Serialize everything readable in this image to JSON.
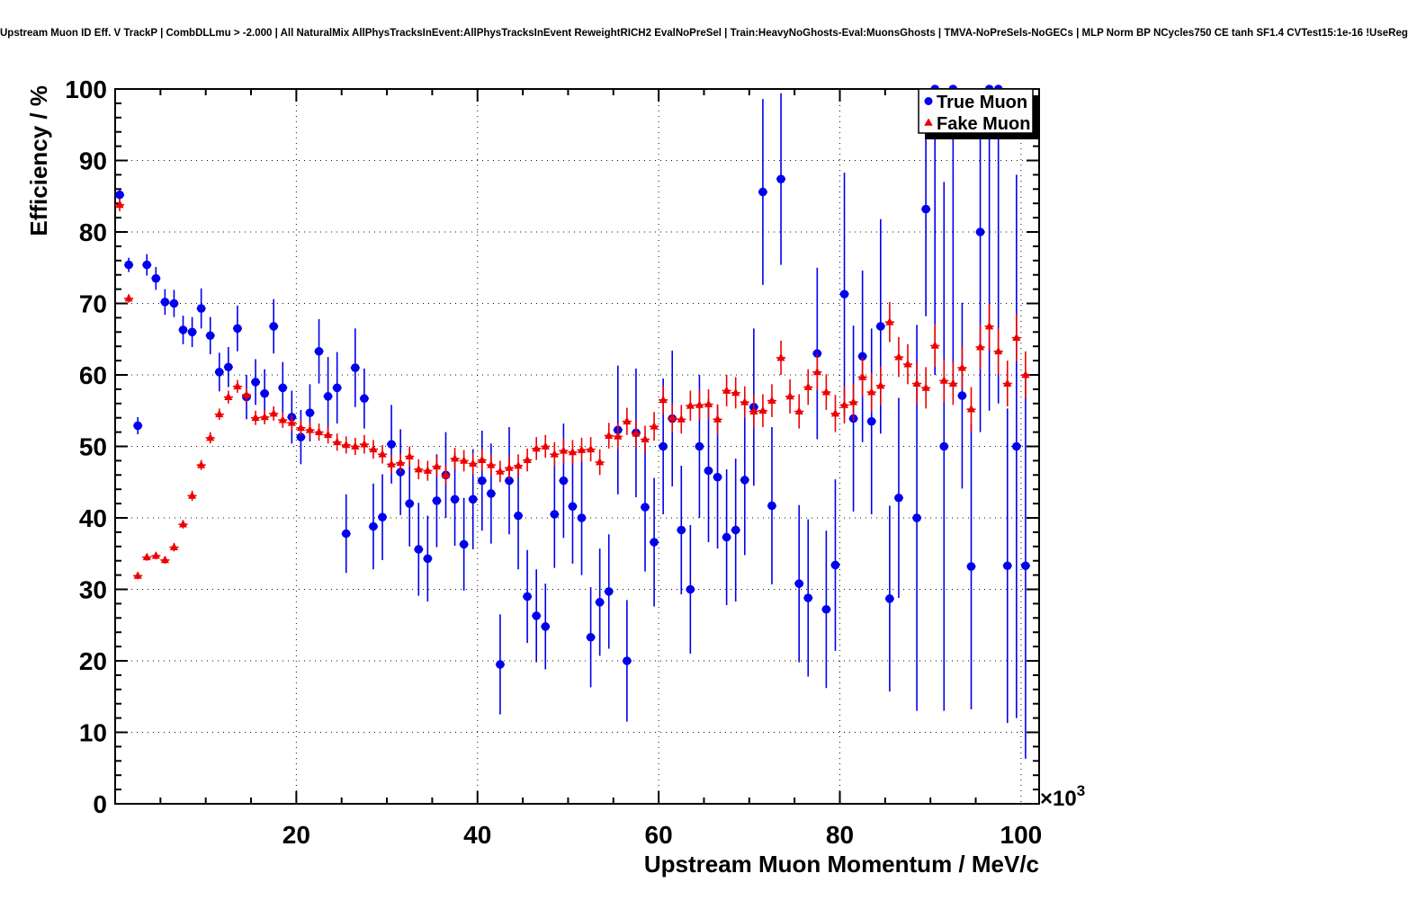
{
  "header": {
    "title": "Upstream Muon ID Eff. V TrackP | CombDLLmu > -2.000 | All NaturalMix AllPhysTracksInEvent:AllPhysTracksInEvent ReweightRICH2 EvalNoPreSel | Train:HeavyNoGhosts-Eval:MuonsGhosts | TMVA-NoPreSels-NoGECs | MLP Norm BP NCycles750 CE tanh SF1.4 CVTest15:1e-16 !UseReg"
  },
  "chart_data": {
    "type": "scatter",
    "title": "Upstream Muon ID Eff. V TrackP",
    "xlabel": "Upstream Muon Momentum / MeV/c",
    "ylabel": "Efficiency / %",
    "x_multiplier": {
      "base": "×10",
      "exp": "3"
    },
    "xlim": [
      0,
      102
    ],
    "ylim": [
      0,
      100
    ],
    "x_unit_scale": "values in units of 10^3 MeV/c",
    "x_major_ticks": [
      20,
      40,
      60,
      80,
      100
    ],
    "x_major_tick_labels": [
      "20",
      "40",
      "60",
      "80",
      "100"
    ],
    "x_minor_step": 5,
    "y_major_ticks": [
      0,
      10,
      20,
      30,
      40,
      50,
      60,
      70,
      80,
      90,
      100
    ],
    "y_major_tick_labels": [
      "0",
      "10",
      "20",
      "30",
      "40",
      "50",
      "60",
      "70",
      "80",
      "90",
      "100"
    ],
    "y_minor_step": 2,
    "grid": "dotted black gridlines at major ticks, both axes",
    "frame_color": "#000000",
    "bin_half_width": 0.5,
    "legend": {
      "position": "top-right",
      "entries": [
        {
          "label": "True Muon",
          "marker": "circle",
          "color": "#0000ee"
        },
        {
          "label": "Fake Muon",
          "marker": "triangle",
          "color": "#ee0000"
        }
      ]
    },
    "series": [
      {
        "name": "True Muon",
        "marker": "circle",
        "color": "#0000ee",
        "x": [
          0.5,
          1.5,
          2.5,
          3.5,
          4.5,
          5.5,
          6.5,
          7.5,
          8.5,
          9.5,
          10.5,
          11.5,
          12.5,
          13.5,
          14.5,
          15.5,
          16.5,
          17.5,
          18.5,
          19.5,
          20.5,
          21.5,
          22.5,
          23.5,
          24.5,
          25.5,
          26.5,
          27.5,
          28.5,
          29.5,
          30.5,
          31.5,
          32.5,
          33.5,
          34.5,
          35.5,
          36.5,
          37.5,
          38.5,
          39.5,
          40.5,
          41.5,
          42.5,
          43.5,
          44.5,
          45.5,
          46.5,
          47.5,
          48.5,
          49.5,
          50.5,
          51.5,
          52.5,
          53.5,
          54.5,
          55.5,
          56.5,
          57.5,
          58.5,
          59.5,
          60.5,
          61.5,
          62.5,
          63.5,
          64.5,
          65.5,
          66.5,
          67.5,
          68.5,
          69.5,
          70.5,
          71.5,
          72.5,
          73.5,
          75.5,
          76.5,
          77.5,
          78.5,
          79.5,
          80.5,
          81.5,
          82.5,
          83.5,
          84.5,
          85.5,
          86.5,
          88.5,
          89.5,
          90.5,
          91.5,
          92.5,
          93.5,
          94.5,
          95.5,
          96.5,
          97.5,
          98.5,
          99.5,
          100.5
        ],
        "y": [
          85.2,
          75.4,
          52.9,
          75.4,
          73.5,
          70.2,
          70.0,
          66.3,
          66.0,
          69.3,
          65.5,
          60.4,
          61.1,
          66.5,
          56.9,
          59.0,
          57.4,
          66.8,
          58.2,
          54.1,
          51.3,
          54.7,
          63.3,
          57.0,
          58.2,
          37.8,
          61.0,
          56.7,
          38.8,
          40.1,
          50.3,
          46.4,
          42.0,
          35.6,
          34.3,
          42.4,
          46.0,
          42.6,
          36.3,
          42.6,
          45.2,
          43.4,
          19.5,
          45.2,
          40.3,
          29.0,
          26.3,
          24.8,
          40.5,
          45.2,
          41.6,
          40.0,
          23.3,
          28.2,
          29.7,
          52.3,
          20.0,
          51.9,
          41.5,
          36.6,
          50.0,
          53.9,
          38.3,
          30.0,
          50.0,
          46.6,
          45.7,
          37.3,
          38.3,
          45.3,
          55.5,
          85.6,
          41.7,
          87.4,
          30.8,
          28.8,
          63.0,
          27.2,
          33.4,
          71.3,
          53.9,
          62.6,
          53.5,
          66.8,
          28.7,
          42.8,
          40.0,
          83.2,
          100.0,
          50.0,
          100.0,
          57.1,
          33.2,
          80.0,
          100.0,
          100.0,
          33.3,
          50.0,
          33.3
        ],
        "ey": [
          0.8,
          1.0,
          1.2,
          1.5,
          1.6,
          1.8,
          1.9,
          2.0,
          2.1,
          2.8,
          2.6,
          2.7,
          2.8,
          3.2,
          3.1,
          3.2,
          3.4,
          3.8,
          3.6,
          3.7,
          3.8,
          4.0,
          4.5,
          5.5,
          5.0,
          5.5,
          5.5,
          4.2,
          6.0,
          6.0,
          5.5,
          6.0,
          6.0,
          6.5,
          6.0,
          6.5,
          6.0,
          6.5,
          6.5,
          7.0,
          7.0,
          7.0,
          7.0,
          7.5,
          7.5,
          6.5,
          6.5,
          6.0,
          7.5,
          8.0,
          8.0,
          8.0,
          7.0,
          7.5,
          8.0,
          9.0,
          8.5,
          9.0,
          9.0,
          9.0,
          9.5,
          9.5,
          9.0,
          9.0,
          10,
          10,
          10,
          9.5,
          10,
          10.5,
          11,
          13,
          11,
          12,
          11,
          11,
          12,
          11,
          12,
          17,
          13,
          12,
          13,
          15,
          13,
          14,
          27,
          15,
          40,
          37,
          42,
          13,
          20,
          28,
          45,
          44,
          22,
          38,
          27
        ]
      },
      {
        "name": "Fake Muon",
        "marker": "triangle",
        "color": "#ee0000",
        "x": [
          0.5,
          1.5,
          2.5,
          3.5,
          4.5,
          5.5,
          6.5,
          7.5,
          8.5,
          9.5,
          10.5,
          11.5,
          12.5,
          13.5,
          14.5,
          15.5,
          16.5,
          17.5,
          18.5,
          19.5,
          20.5,
          21.5,
          22.5,
          23.5,
          24.5,
          25.5,
          26.5,
          27.5,
          28.5,
          29.5,
          30.5,
          31.5,
          32.5,
          33.5,
          34.5,
          35.5,
          36.5,
          37.5,
          38.5,
          39.5,
          40.5,
          41.5,
          42.5,
          43.5,
          44.5,
          45.5,
          46.5,
          47.5,
          48.5,
          49.5,
          50.5,
          51.5,
          52.5,
          53.5,
          54.5,
          55.5,
          56.5,
          57.5,
          58.5,
          59.5,
          60.5,
          61.5,
          62.5,
          63.5,
          64.5,
          65.5,
          66.5,
          67.5,
          68.5,
          69.5,
          70.5,
          71.5,
          72.5,
          73.5,
          74.5,
          75.5,
          76.5,
          77.5,
          78.5,
          79.5,
          80.5,
          81.5,
          82.5,
          83.5,
          84.5,
          85.5,
          86.5,
          87.5,
          88.5,
          89.5,
          90.5,
          91.5,
          92.5,
          93.5,
          94.5,
          95.5,
          96.5,
          97.5,
          98.5,
          99.5,
          100.5
        ],
        "y": [
          83.8,
          70.7,
          31.9,
          34.5,
          34.7,
          34.1,
          35.9,
          39.1,
          43.1,
          47.4,
          51.2,
          54.5,
          56.9,
          58.4,
          57.2,
          54.0,
          54.1,
          54.6,
          53.7,
          53.3,
          52.6,
          52.3,
          52.0,
          51.6,
          50.6,
          50.2,
          50.0,
          50.3,
          49.6,
          48.9,
          47.5,
          47.7,
          48.6,
          46.8,
          46.6,
          47.2,
          46.0,
          48.3,
          48.0,
          47.6,
          48.1,
          47.4,
          46.5,
          47.0,
          47.3,
          48.1,
          49.7,
          50.0,
          48.9,
          49.4,
          49.2,
          49.5,
          49.6,
          47.8,
          51.5,
          51.4,
          53.5,
          51.8,
          51.0,
          52.8,
          56.5,
          54.0,
          53.8,
          55.7,
          55.8,
          55.9,
          53.8,
          57.8,
          57.5,
          56.2,
          54.9,
          55.0,
          56.4,
          62.4,
          57.0,
          54.9,
          58.3,
          60.4,
          57.6,
          54.6,
          55.8,
          56.2,
          59.7,
          57.6,
          58.5,
          67.4,
          62.5,
          61.5,
          58.8,
          58.2,
          64.1,
          59.2,
          58.8,
          61.0,
          55.2,
          63.9,
          66.8,
          63.3,
          58.8,
          65.2,
          60.0
        ],
        "ey": [
          0.9,
          0.6,
          0.5,
          0.5,
          0.5,
          0.5,
          0.6,
          0.6,
          0.7,
          0.7,
          0.8,
          0.8,
          0.9,
          0.9,
          1.0,
          1.0,
          1.0,
          1.0,
          1.1,
          1.1,
          1.1,
          1.1,
          1.2,
          1.2,
          1.2,
          1.2,
          1.2,
          1.3,
          1.3,
          1.3,
          1.3,
          1.3,
          1.4,
          1.4,
          1.4,
          1.4,
          1.4,
          1.5,
          1.5,
          1.5,
          1.5,
          1.5,
          1.5,
          1.6,
          1.6,
          1.6,
          1.6,
          1.6,
          1.7,
          1.7,
          1.7,
          1.7,
          1.7,
          1.8,
          1.8,
          1.8,
          1.9,
          1.9,
          1.9,
          2.0,
          2.0,
          2.0,
          2.0,
          2.1,
          2.1,
          2.1,
          2.1,
          2.2,
          2.2,
          2.2,
          2.3,
          2.3,
          2.3,
          2.4,
          2.4,
          2.4,
          2.5,
          2.5,
          2.5,
          2.6,
          2.6,
          2.6,
          2.7,
          2.7,
          2.7,
          2.8,
          2.8,
          2.8,
          2.9,
          2.9,
          3.0,
          3.0,
          3.0,
          3.0,
          3.1,
          3.1,
          3.2,
          3.2,
          3.2,
          3.3,
          3.3
        ]
      }
    ]
  }
}
